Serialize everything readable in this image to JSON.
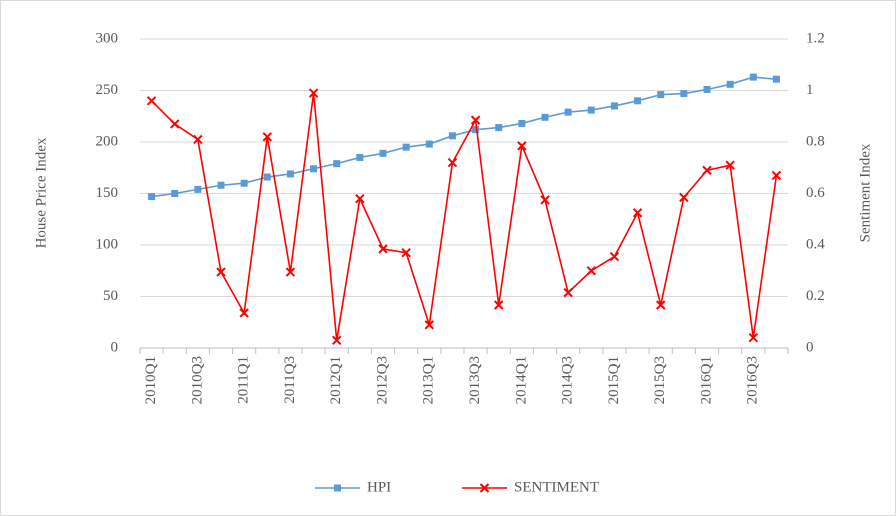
{
  "chart_data": {
    "type": "line",
    "categories": [
      "2010Q1",
      null,
      "2010Q3",
      null,
      "2011Q1",
      null,
      "2011Q3",
      null,
      "2012Q1",
      null,
      "2012Q3",
      null,
      "2013Q1",
      null,
      "2013Q3",
      null,
      "2014Q1",
      null,
      "2014Q3",
      null,
      "2015Q1",
      null,
      "2015Q3",
      null,
      "2016Q1",
      null,
      "2016Q3",
      null
    ],
    "ylabel": "House Price Index",
    "y2label": "Sentiment Index",
    "ylim": [
      0,
      300
    ],
    "yticks": [
      0,
      50,
      100,
      150,
      200,
      250,
      300
    ],
    "y2lim": [
      0,
      1.2
    ],
    "y2ticks": [
      0,
      0.2,
      0.4,
      0.6,
      0.8,
      1,
      1.2
    ],
    "grid": true,
    "legend": "bottom",
    "series": [
      {
        "name": "HPI",
        "color": "#5b9bd5",
        "marker": "square",
        "values": [
          147,
          150,
          154,
          158,
          160,
          166,
          169,
          174,
          179,
          185,
          189,
          195,
          198,
          206,
          212,
          214,
          218,
          224,
          229,
          231,
          235,
          240,
          246,
          247,
          251,
          256,
          263,
          261
        ]
      },
      {
        "name": "SENTIMENT",
        "color": "#ff0000",
        "marker": "x",
        "axis": "y2",
        "values": [
          0.96,
          0.87,
          0.81,
          0.295,
          0.136,
          0.82,
          0.295,
          0.99,
          0.03,
          0.58,
          0.385,
          0.37,
          0.09,
          0.72,
          0.885,
          0.167,
          0.785,
          0.575,
          0.215,
          0.3,
          0.355,
          0.525,
          0.167,
          0.585,
          0.69,
          0.71,
          0.04,
          0.67
        ]
      }
    ]
  }
}
